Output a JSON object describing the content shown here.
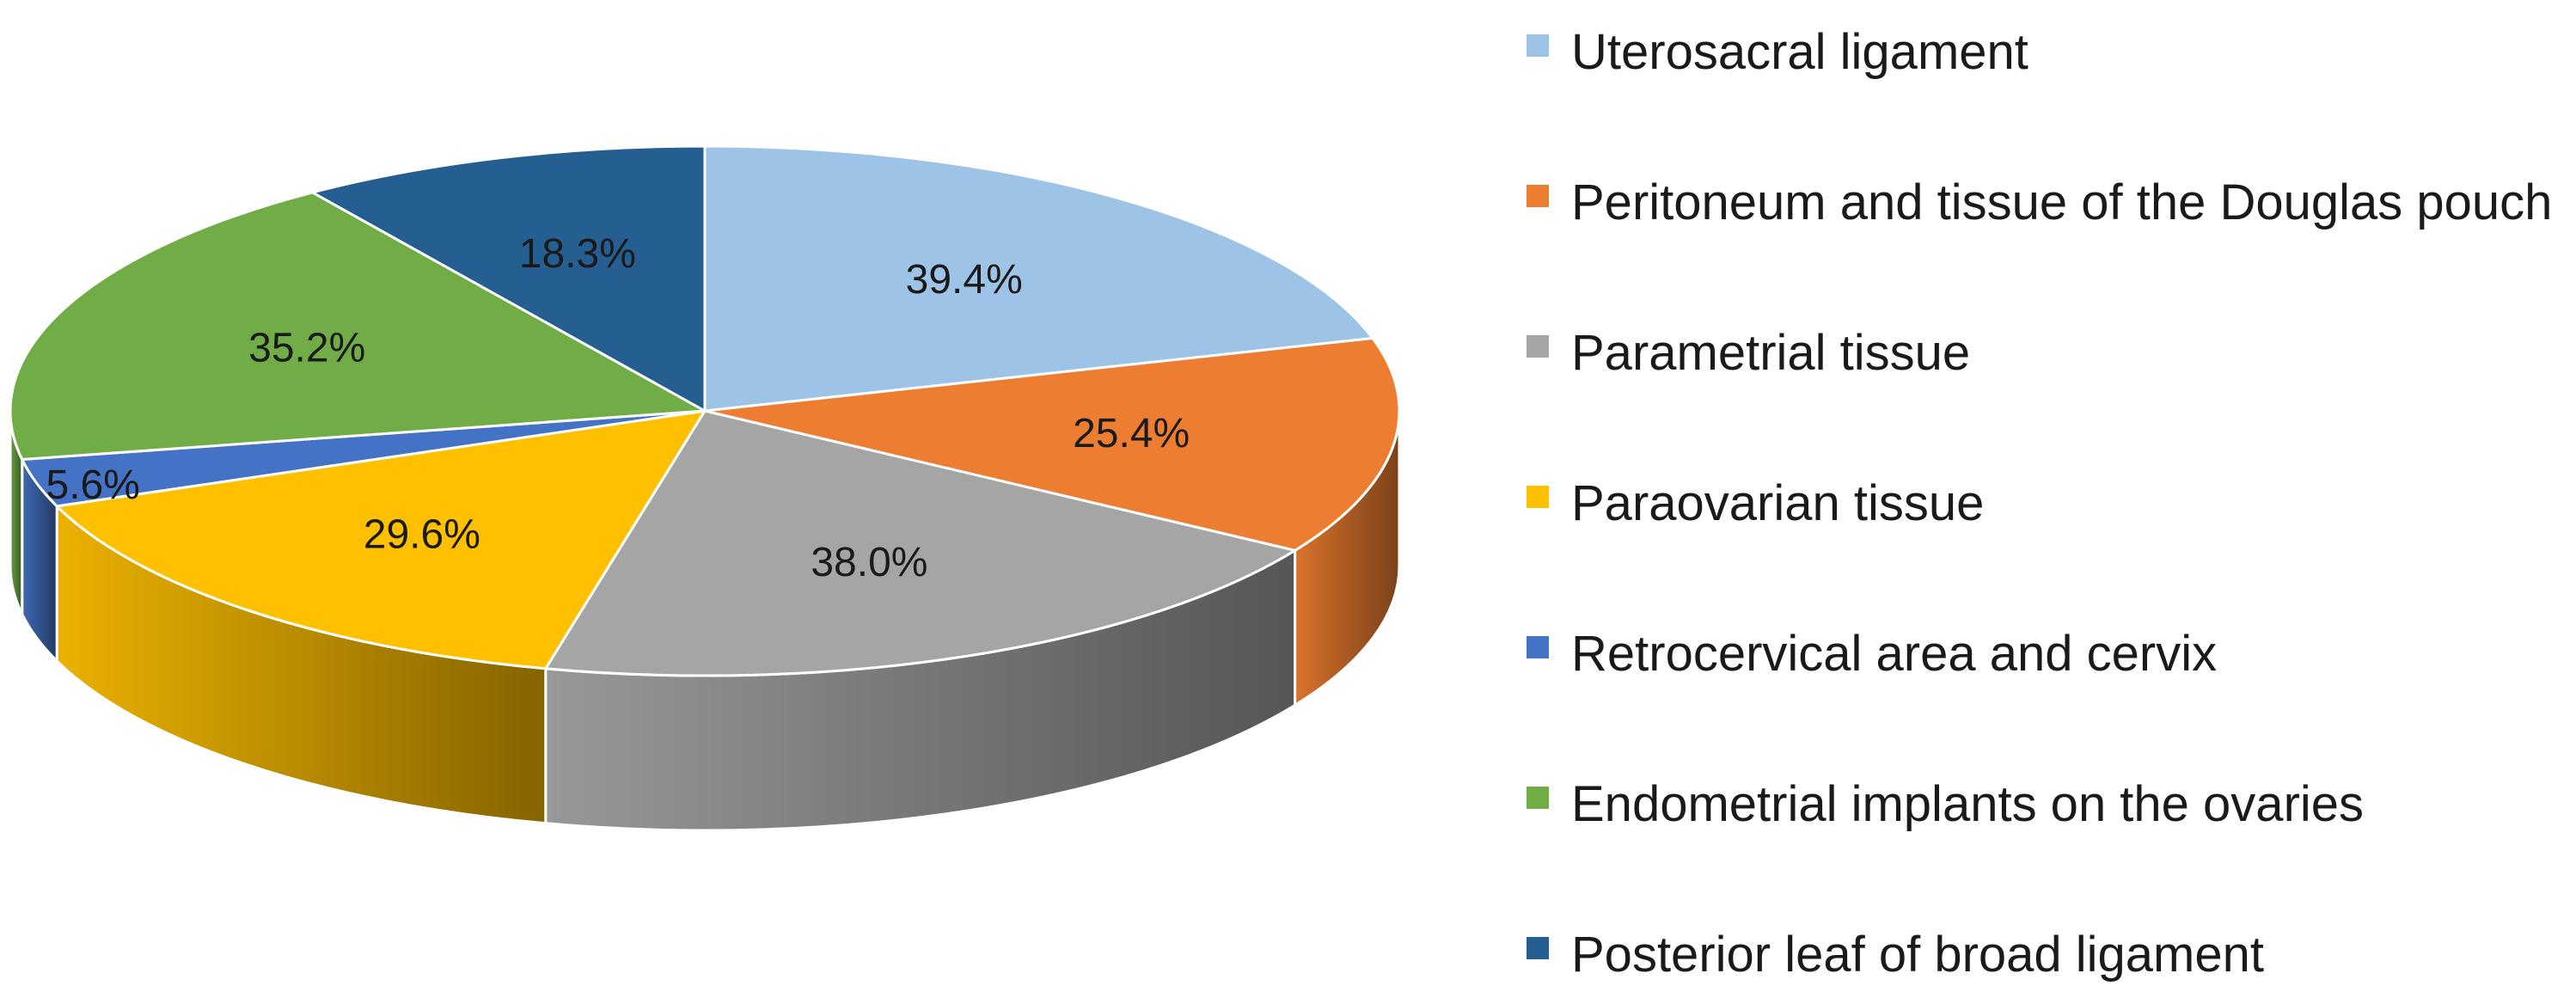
{
  "chart_data": {
    "type": "pie",
    "slices": [
      {
        "label": "Uterosacral ligament",
        "value": 39.4,
        "display": "39.4%",
        "color": "#9DC3E6"
      },
      {
        "label": "Peritoneum and tissue of the Douglas pouch",
        "value": 25.4,
        "display": "25.4%",
        "color": "#ED7D31"
      },
      {
        "label": "Parametrial tissue",
        "value": 38.0,
        "display": "38.0%",
        "color": "#A5A5A5"
      },
      {
        "label": "Paraovarian tissue",
        "value": 29.6,
        "display": "29.6%",
        "color": "#FFC000"
      },
      {
        "label": "Retrocervical area and cervix",
        "value": 5.6,
        "display": "5.6%",
        "color": "#4472C4"
      },
      {
        "label": "Endometrial implants on the ovaries",
        "value": 35.2,
        "display": "35.2%",
        "color": "#70AD47"
      },
      {
        "label": "Posterior leaf of broad ligament",
        "value": 18.3,
        "display": "18.3%",
        "color": "#255E91"
      }
    ],
    "legend_position": "right",
    "style": "3d-pie"
  }
}
